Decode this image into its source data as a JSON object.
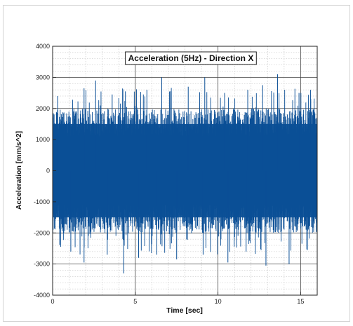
{
  "chart_data": {
    "type": "line",
    "title": "Acceleration (5Hz) - Direction X",
    "xlabel": "Time [sec]",
    "ylabel": "Acceleration [mm/s^2]",
    "xlim": [
      0,
      16
    ],
    "ylim": [
      -4000,
      4000
    ],
    "x_ticks": [
      0,
      5,
      10,
      15
    ],
    "y_ticks": [
      -4000,
      -3000,
      -2000,
      -1000,
      0,
      1000,
      2000,
      3000,
      4000
    ],
    "grid": "major and minor, dotted minor",
    "legend": "none",
    "title_placement": "top-center inside plot, boxed",
    "series": [
      {
        "color": "#0b4f96",
        "sampling": "dense signal, 0 to 16 s",
        "band_envelope": {
          "typical_abs_max": 2000,
          "peak_max": 3100,
          "peak_min": -3300
        },
        "peaks": [
          {
            "x": 0.3,
            "y": 2400
          },
          {
            "x": 1.9,
            "y": 2650
          },
          {
            "x": 2.6,
            "y": 2900
          },
          {
            "x": 3.6,
            "y": 2450
          },
          {
            "x": 4.4,
            "y": 2550
          },
          {
            "x": 5.7,
            "y": 2600
          },
          {
            "x": 6.6,
            "y": 3000
          },
          {
            "x": 8.2,
            "y": 2700
          },
          {
            "x": 9.2,
            "y": 3000
          },
          {
            "x": 10.4,
            "y": 2500
          },
          {
            "x": 11.8,
            "y": 2600
          },
          {
            "x": 12.7,
            "y": 2750
          },
          {
            "x": 13.6,
            "y": 3100
          },
          {
            "x": 14.9,
            "y": 2500
          },
          {
            "x": 15.6,
            "y": 2600
          },
          {
            "x": 1.1,
            "y": -2600
          },
          {
            "x": 1.9,
            "y": -2950
          },
          {
            "x": 3.3,
            "y": -2700
          },
          {
            "x": 4.3,
            "y": -3300
          },
          {
            "x": 5.2,
            "y": -2800
          },
          {
            "x": 6.3,
            "y": -2700
          },
          {
            "x": 7.5,
            "y": -2850
          },
          {
            "x": 9.1,
            "y": -2700
          },
          {
            "x": 10.6,
            "y": -2950
          },
          {
            "x": 11.7,
            "y": -2600
          },
          {
            "x": 12.9,
            "y": -3050
          },
          {
            "x": 14.3,
            "y": -3000
          },
          {
            "x": 15.4,
            "y": -2550
          }
        ]
      }
    ]
  }
}
